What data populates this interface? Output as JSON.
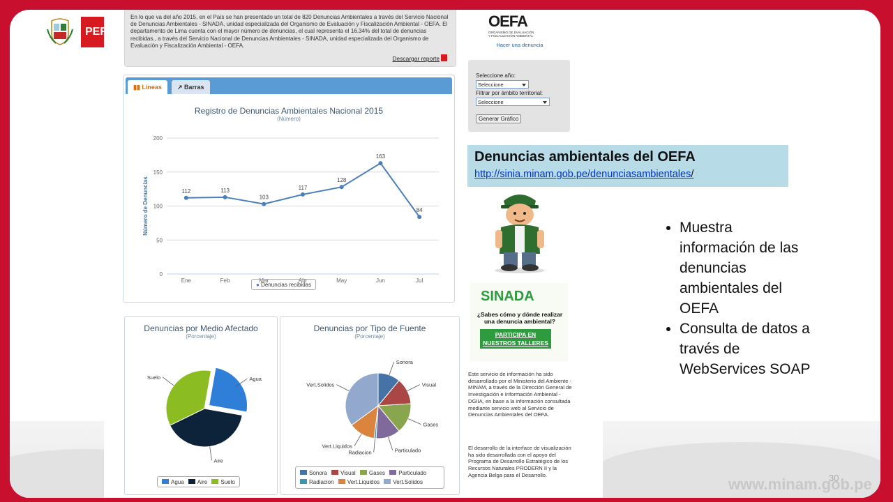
{
  "header": {
    "peru_label": "PER"
  },
  "summary": {
    "text": "En lo que va del año 2015, en el País se han presentado un total de 820 Denuncias Ambientales a través del Servicio Nacional de Denuncias Ambientales - SINADA, unidad especializada del Organismo de Evaluación y Fiscalización Ambiental - OEFA. El departamento de Lima cuenta con el mayor número de denuncias, el cual representa el 16.34% del total de denuncias recibidas., a través del Servicio Nacional de Denuncias Ambientales - SINADA, unidad especializada del Organismo de Evaluación y Fiscalización Ambiental - OEFA.",
    "download_label": "Descargar reporte"
  },
  "tabs": [
    {
      "label": "Líneas"
    },
    {
      "label": "Barras"
    }
  ],
  "oefa": {
    "logo": "OEFA",
    "org_line1": "ORGANISMO DE EVALUACIÓN",
    "org_line2": "Y FISCALIZACIÓN AMBIENTAL",
    "link": "Hacer una denuncia"
  },
  "filters": {
    "year_label": "Seleccione año:",
    "year_value": "Seleccione",
    "scope_label": "Filtrar por ámbito territorial:",
    "scope_value": "Seleccione",
    "button": "Generar Gráfico"
  },
  "banner": {
    "title": "Denuncias ambientales del OEFA",
    "url": "http://sinia.minam.gob.pe/denunciasambientales",
    "url_suffix": "/"
  },
  "bullets": [
    "Muestra información de las denuncias ambientales del OEFA",
    "Consulta de datos a través de WebServices SOAP"
  ],
  "sinada": {
    "title": "SINADA",
    "question": "¿Sabes cómo y dónde realizar una denuncia ambiental?",
    "cta": "PARTICIPA EN NUESTROS TALLERES"
  },
  "notes": [
    "Este servicio de información ha sido desarrollado por el Ministerio del Ambiente - MINAM, a través de la Dirección General de Investigación e Información Ambiental - DGIIA, en base a la información consultada mediante servicio web al Servicio de Denuncias Ambientales del OEFA.",
    "El desarrollo de la interface de visualización ha sido desarrollada con el apoyo del Programa de Desarrollo Estratégico de los Recursos Naturales PRODERN II y la Agencia Belga para el Desarrollo."
  ],
  "footer": {
    "page_number": "30",
    "site": "www.minam.gob.pe"
  },
  "colors": {
    "brand_red": "#c8102e",
    "line_blue": "#4a7ebb",
    "tab_blue": "#5b9bd5"
  },
  "chart_data": [
    {
      "type": "line",
      "title": "Registro de Denuncias Ambientales Nacional 2015",
      "subtitle": "(Número)",
      "ylabel": "Número de Denuncias",
      "xlabel": "",
      "categories": [
        "Ene",
        "Feb",
        "Mar",
        "Abr",
        "May",
        "Jun",
        "Jul"
      ],
      "series": [
        {
          "name": "Denuncias recibidas",
          "values": [
            112,
            113,
            103,
            117,
            128,
            163,
            84
          ],
          "color": "#4a7ebb"
        }
      ],
      "ylim": [
        0,
        200
      ],
      "yticks": [
        0,
        50,
        100,
        150,
        200
      ],
      "grid": true,
      "legend": "bottom"
    },
    {
      "type": "pie",
      "title": "Denuncias por Medio Afectado",
      "subtitle": "(Porcentaje)",
      "slices": [
        {
          "label": "Agua",
          "value": 25,
          "color": "#2f7ed8"
        },
        {
          "label": "Aire",
          "value": 40,
          "color": "#0d233a"
        },
        {
          "label": "Suelo",
          "value": 35,
          "color": "#8bbc21"
        }
      ],
      "legend": "bottom"
    },
    {
      "type": "pie",
      "title": "Denuncias por Tipo de Fuente",
      "subtitle": "(Porcentaje)",
      "slices": [
        {
          "label": "Sonora",
          "value": 11,
          "color": "#4572a7"
        },
        {
          "label": "Visual",
          "value": 13,
          "color": "#aa4643"
        },
        {
          "label": "Gases",
          "value": 15,
          "color": "#89a54e"
        },
        {
          "label": "Particulado",
          "value": 12,
          "color": "#80699b"
        },
        {
          "label": "Radiacion",
          "value": 1,
          "color": "#3d96ae"
        },
        {
          "label": "Vert.Liquidos",
          "value": 13,
          "color": "#db843d"
        },
        {
          "label": "Vert.Solidos",
          "value": 35,
          "color": "#92a8cd"
        }
      ],
      "legend": "bottom"
    }
  ]
}
